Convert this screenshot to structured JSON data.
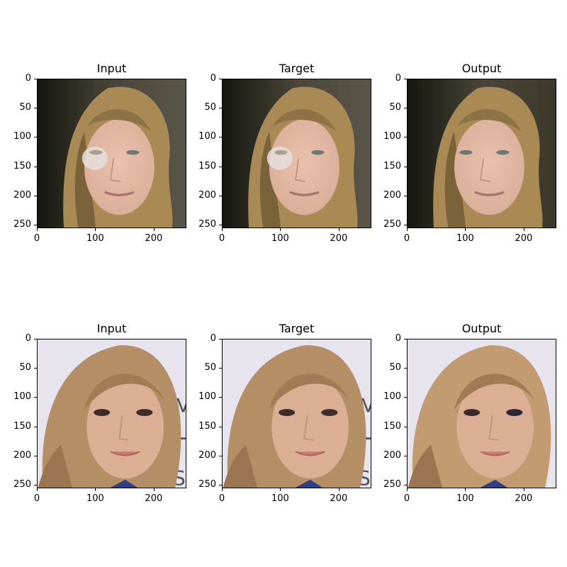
{
  "rows": [
    {
      "panels": [
        {
          "title": "Input",
          "image": "face-blonde-dark-bg-with-eye-artifact"
        },
        {
          "title": "Target",
          "image": "face-blonde-dark-bg-with-eye-artifact"
        },
        {
          "title": "Output",
          "image": "face-blonde-dark-bg-reconstructed"
        }
      ]
    },
    {
      "panels": [
        {
          "title": "Input",
          "image": "face-light-brown-hair-white-bg"
        },
        {
          "title": "Target",
          "image": "face-light-brown-hair-white-bg"
        },
        {
          "title": "Output",
          "image": "face-light-brown-hair-white-bg-reconstructed"
        }
      ]
    }
  ],
  "axes": {
    "xlim": [
      0,
      256
    ],
    "ylim": [
      256,
      0
    ],
    "x_ticks": [
      "0",
      "100",
      "200"
    ],
    "y_ticks": [
      "0",
      "50",
      "100",
      "150",
      "200",
      "250"
    ]
  },
  "colors": {
    "row1_background": "#1e2016",
    "row1_hair": "#a98a55",
    "row1_skin": "#d9ae98",
    "row2_background": "#e8e4ee",
    "row2_hair": "#b48e64",
    "row2_skin": "#dcae94",
    "eye_patch": "#e6dedd"
  }
}
